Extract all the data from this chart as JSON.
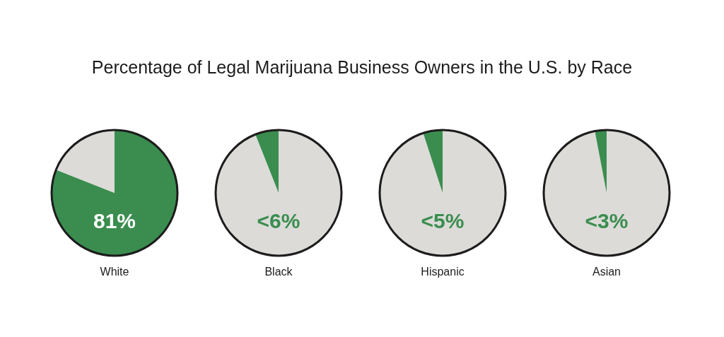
{
  "chart_data": [
    {
      "type": "pie",
      "title": "Percentage of Legal Marijuana Business Owners in the U.S. by Race",
      "xlabel": "White",
      "categories": [
        null,
        null
      ],
      "values": [
        81,
        19
      ],
      "colors": [
        "#3a8d4f",
        "#dcdbd8"
      ],
      "value_labels": [
        "81%",
        null
      ]
    },
    {
      "type": "pie",
      "xlabel": "Black",
      "categories": [
        null,
        null
      ],
      "values": [
        94,
        6
      ],
      "colors": [
        "#dcdbd8",
        "#3a8d4f"
      ],
      "annotations": [
        "<6%"
      ]
    },
    {
      "type": "pie",
      "xlabel": "Hispanic",
      "categories": [
        null,
        null
      ],
      "values": [
        95,
        5
      ],
      "colors": [
        "#dcdbd8",
        "#3a8d4f"
      ],
      "annotations": [
        "<5%"
      ]
    },
    {
      "type": "pie",
      "xlabel": "Asian",
      "categories": [
        null,
        null
      ],
      "values": [
        97,
        3
      ],
      "colors": [
        "#dcdbd8",
        "#3a8d4f"
      ],
      "annotations": [
        "<3%"
      ]
    }
  ]
}
